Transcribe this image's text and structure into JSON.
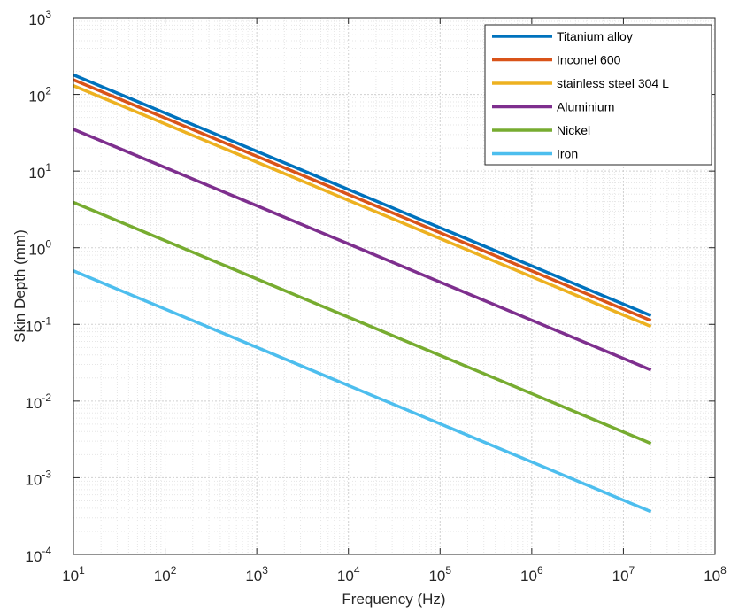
{
  "chart_data": {
    "type": "line",
    "xlabel": "Frequency (Hz)",
    "ylabel": "Skin Depth (mm)",
    "xscale": "log",
    "yscale": "log",
    "xlim": [
      10,
      100000000
    ],
    "ylim": [
      0.0001,
      1000
    ],
    "x_ticks": [
      {
        "base": "10",
        "exp": "1"
      },
      {
        "base": "10",
        "exp": "2"
      },
      {
        "base": "10",
        "exp": "3"
      },
      {
        "base": "10",
        "exp": "4"
      },
      {
        "base": "10",
        "exp": "5"
      },
      {
        "base": "10",
        "exp": "6"
      },
      {
        "base": "10",
        "exp": "7"
      },
      {
        "base": "10",
        "exp": "8"
      }
    ],
    "y_ticks": [
      {
        "base": "10",
        "exp": "-4"
      },
      {
        "base": "10",
        "exp": "-3"
      },
      {
        "base": "10",
        "exp": "-2"
      },
      {
        "base": "10",
        "exp": "-1"
      },
      {
        "base": "10",
        "exp": "0"
      },
      {
        "base": "10",
        "exp": "1"
      },
      {
        "base": "10",
        "exp": "2"
      },
      {
        "base": "10",
        "exp": "3"
      }
    ],
    "grid": true,
    "minor_grid": true,
    "legend_position": "top-right",
    "series": [
      {
        "name": "Titanium alloy",
        "color": "#0072BD",
        "x": [
          10,
          20000000
        ],
        "values": [
          180,
          0.13
        ]
      },
      {
        "name": "Inconel 600",
        "color": "#D95319",
        "x": [
          10,
          20000000
        ],
        "values": [
          155,
          0.112
        ]
      },
      {
        "name": "stainless steel 304 L",
        "color": "#EDB120",
        "x": [
          10,
          20000000
        ],
        "values": [
          130,
          0.094
        ]
      },
      {
        "name": "Aluminium",
        "color": "#7E2F8E",
        "x": [
          10,
          20000000
        ],
        "values": [
          35,
          0.0255
        ]
      },
      {
        "name": "Nickel",
        "color": "#77AC30",
        "x": [
          10,
          20000000
        ],
        "values": [
          3.9,
          0.0028
        ]
      },
      {
        "name": "Iron",
        "color": "#4DBEEE",
        "x": [
          10,
          20000000
        ],
        "values": [
          0.5,
          0.00036
        ]
      }
    ]
  }
}
